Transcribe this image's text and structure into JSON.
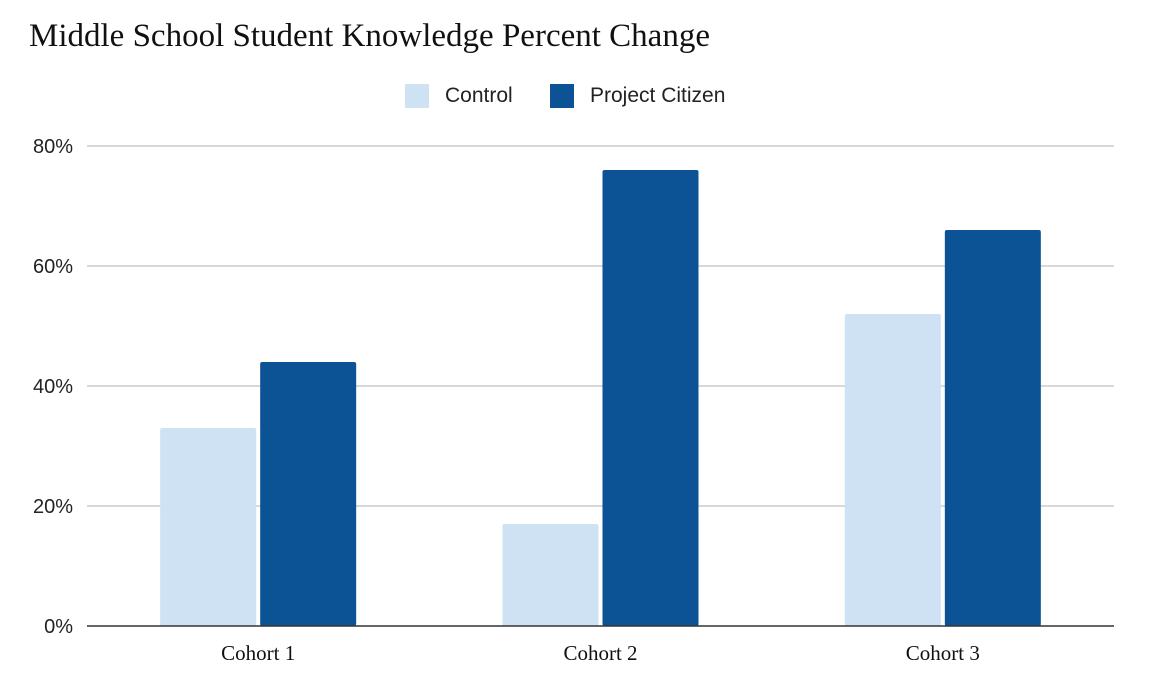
{
  "chart_data": {
    "type": "bar",
    "title": "Middle School Student Knowledge Percent Change",
    "xlabel": "",
    "ylabel": "",
    "categories": [
      "Cohort 1",
      "Cohort 2",
      "Cohort 3"
    ],
    "series": [
      {
        "name": "Control",
        "values": [
          33,
          17,
          52
        ],
        "color": "#cfe2f3"
      },
      {
        "name": "Project Citizen",
        "values": [
          44,
          76,
          66
        ],
        "color": "#0b5394"
      }
    ],
    "ylim": [
      0,
      80
    ],
    "yticks": [
      0,
      20,
      40,
      60,
      80
    ],
    "ytick_labels": [
      "0%",
      "20%",
      "40%",
      "60%",
      "80%"
    ],
    "grid": true,
    "legend_position": "top-center"
  }
}
